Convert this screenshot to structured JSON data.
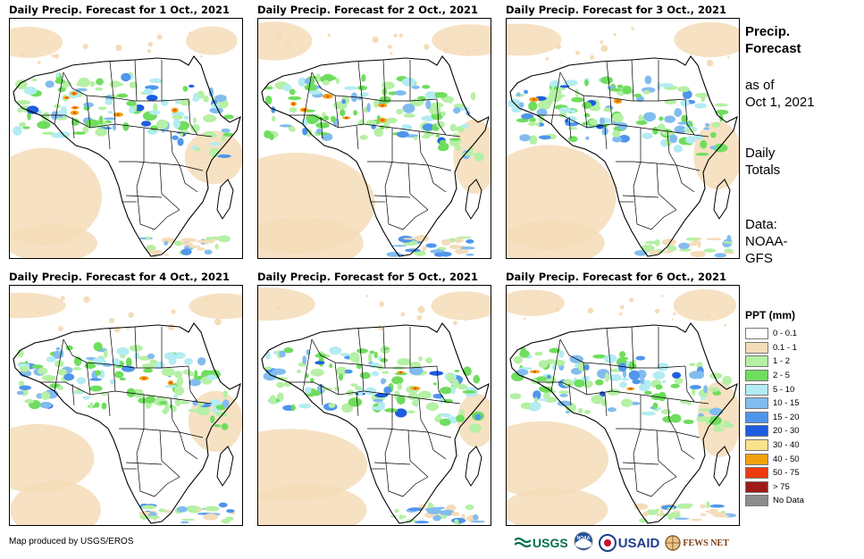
{
  "panels": [
    {
      "title": "Daily Precip. Forecast for 1 Oct., 2021",
      "day": 1
    },
    {
      "title": "Daily Precip. Forecast for 2 Oct., 2021",
      "day": 2
    },
    {
      "title": "Daily Precip. Forecast for 3 Oct., 2021",
      "day": 3
    },
    {
      "title": "Daily Precip. Forecast for 4 Oct., 2021",
      "day": 4
    },
    {
      "title": "Daily Precip. Forecast for 5 Oct., 2021",
      "day": 5
    },
    {
      "title": "Daily Precip. Forecast for 6 Oct., 2021",
      "day": 6
    }
  ],
  "sidebar": {
    "heading_line1": "Precip.",
    "heading_line2": "Forecast",
    "asof_line1": "as of",
    "asof_line2": "Oct 1, 2021",
    "totals_line1": "Daily",
    "totals_line2": "Totals",
    "data_line1": "Data:",
    "data_line2": "NOAA-",
    "data_line3": "GFS"
  },
  "legend": {
    "title": "PPT (mm)",
    "items": [
      {
        "label": "0 - 0.1",
        "color": "#ffffff"
      },
      {
        "label": "0.1 - 1",
        "color": "#f5dcb9"
      },
      {
        "label": "1 - 2",
        "color": "#b5f0a5"
      },
      {
        "label": "2 - 5",
        "color": "#6fdd5e"
      },
      {
        "label": "5 - 10",
        "color": "#b3ecf2"
      },
      {
        "label": "10 - 15",
        "color": "#82bcef"
      },
      {
        "label": "15 - 20",
        "color": "#4f95ec"
      },
      {
        "label": "20 - 30",
        "color": "#1d5de0"
      },
      {
        "label": "30 - 40",
        "color": "#fbe38d"
      },
      {
        "label": "40 - 50",
        "color": "#f2a10e"
      },
      {
        "label": "50 - 75",
        "color": "#ec3b0d"
      },
      {
        "label": "> 75",
        "color": "#9c1a1a"
      },
      {
        "label": "No Data",
        "color": "#8c8c8c"
      }
    ]
  },
  "footer": {
    "credit": "Map produced by USGS/EROS",
    "logos": [
      "USGS",
      "NOAA",
      "USAID",
      "FEWS NET"
    ]
  }
}
